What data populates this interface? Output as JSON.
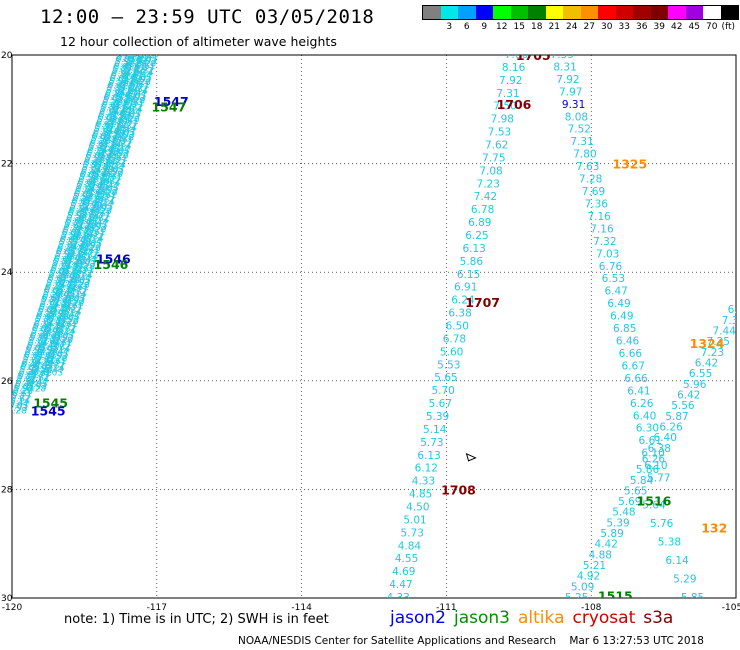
{
  "header": {
    "title": "12:00 – 23:59 UTC 03/05/2018",
    "subtitle": "12 hour collection of altimeter wave heights"
  },
  "legend": {
    "unit": "(ft)",
    "colors": [
      "#808080",
      "#00e8e8",
      "#00a0ff",
      "#0000ff",
      "#00ff00",
      "#00c000",
      "#008000",
      "#ffff00",
      "#f0c000",
      "#ff9000",
      "#ff0000",
      "#d00000",
      "#a00000",
      "#800000",
      "#ff00ff",
      "#a000e0",
      "#ffffff",
      "#000000"
    ],
    "labels": [
      "3",
      "6",
      "9",
      "12",
      "15",
      "18",
      "21",
      "24",
      "27",
      "30",
      "33",
      "36",
      "39",
      "42",
      "45",
      "70"
    ]
  },
  "chart_data": {
    "type": "map",
    "xlim": [
      -120,
      -105
    ],
    "ylim": [
      20,
      30
    ],
    "x_ticks": [
      "-120",
      "-117",
      "-114",
      "-111",
      "-108",
      "-105"
    ],
    "y_ticks": [
      "20",
      "22",
      "24",
      "26",
      "28",
      "30"
    ],
    "time_labels": [
      {
        "text": "1547",
        "lon": -116.7,
        "lat": 20.85,
        "color": "#0000cc"
      },
      {
        "text": "1547",
        "lon": -116.75,
        "lat": 20.95,
        "color": "#008000"
      },
      {
        "text": "1546",
        "lon": -117.9,
        "lat": 23.75,
        "color": "#0000cc"
      },
      {
        "text": "1546",
        "lon": -117.95,
        "lat": 23.85,
        "color": "#008000"
      },
      {
        "text": "1545",
        "lon": -119.2,
        "lat": 26.4,
        "color": "#008000"
      },
      {
        "text": "1545",
        "lon": -119.25,
        "lat": 26.55,
        "color": "#0000cc"
      },
      {
        "text": "1705",
        "lon": -109.2,
        "lat": 20.0,
        "color": "#800000"
      },
      {
        "text": "1706",
        "lon": -109.6,
        "lat": 20.9,
        "color": "#800000"
      },
      {
        "text": "1707",
        "lon": -110.25,
        "lat": 24.55,
        "color": "#800000"
      },
      {
        "text": "1708",
        "lon": -110.75,
        "lat": 28.0,
        "color": "#800000"
      },
      {
        "text": "1325",
        "lon": -107.2,
        "lat": 22.0,
        "color": "#ff8c00"
      },
      {
        "text": "1324",
        "lon": -105.6,
        "lat": 25.3,
        "color": "#ff8c00"
      },
      {
        "text": "132",
        "lon": -105.45,
        "lat": 28.7,
        "color": "#ff8c00"
      },
      {
        "text": "1516",
        "lon": -106.7,
        "lat": 28.2,
        "color": "#008000"
      },
      {
        "text": "1515",
        "lon": -107.5,
        "lat": 29.95,
        "color": "#008000"
      }
    ],
    "tracks": [
      {
        "satellite": "cryosat",
        "start": [
          -109.55,
          20.0
        ],
        "end": [
          -112.0,
          30.0
        ],
        "values": [
          "7.06",
          "8.16",
          "7.92",
          "7.31",
          "7.50",
          "7.98",
          "7.53",
          "7.62",
          "7.75",
          "7.08",
          "7.23",
          "7.42",
          "6.78",
          "6.89",
          "6.25",
          "6.13",
          "5.86",
          "6.15",
          "6.91",
          "6.24",
          "6.38",
          "6.50",
          "6.78",
          "5.60",
          "5.53",
          "5.65",
          "5.70",
          "5.67",
          "5.39",
          "5.14",
          "5.73",
          "6.13",
          "6.12",
          "4.33",
          "4.85",
          "4.50",
          "5.01",
          "5.73",
          "4.84",
          "4.55",
          "4.69",
          "4.47",
          "4.33"
        ]
      },
      {
        "satellite": "cryosat",
        "start": [
          -108.6,
          20.0
        ],
        "end": [
          -106.6,
          27.8
        ],
        "values": [
          "7.35",
          "8.31",
          "7.92",
          "7.97",
          "9.31",
          "8.08",
          "7.52",
          "7.31",
          "7.80",
          "7.63",
          "7.28",
          "7.69",
          "7.36",
          "7.16",
          "7.16",
          "7.32",
          "7.03",
          "6.76",
          "6.53",
          "6.47",
          "6.49",
          "6.49",
          "6.85",
          "6.46",
          "6.66",
          "6.67",
          "6.66",
          "6.41",
          "6.26",
          "6.40",
          "6.30",
          "6.61",
          "6.10",
          "6.10",
          "5.77"
        ]
      },
      {
        "satellite": "altika",
        "start": [
          -108.3,
          30.0
        ],
        "end": [
          -105.0,
          24.7
        ],
        "values": [
          "5.25",
          "5.09",
          "4.92",
          "5.21",
          "4.88",
          "4.42",
          "5.89",
          "5.39",
          "5.48",
          "5.69",
          "5.65",
          "5.84",
          "5.86",
          "6.26",
          "6.38",
          "6.40",
          "6.26",
          "5.87",
          "5.56",
          "6.42",
          "5.96",
          "6.55",
          "6.42",
          "7.23",
          "7.25",
          "7.44",
          "7.3",
          "6.3"
        ]
      },
      {
        "satellite": "altika",
        "start": [
          -106.7,
          28.3
        ],
        "end": [
          -105.9,
          30.0
        ],
        "values": [
          "5.64",
          "5.76",
          "5.38",
          "6.14",
          "5.29",
          "5.85"
        ]
      }
    ],
    "marker": {
      "lon": -110.5,
      "lat": 27.4
    }
  },
  "footer": {
    "note": "note: 1) Time is in UTC; 2) SWH is in feet",
    "satellites": [
      {
        "name": "jason2",
        "color": "#0000ee"
      },
      {
        "name": "jason3",
        "color": "#009000"
      },
      {
        "name": "altika",
        "color": "#ff8c00"
      },
      {
        "name": "cryosat",
        "color": "#d00000"
      },
      {
        "name": "s3a",
        "color": "#800000"
      }
    ],
    "credit": "NOAA/NESDIS Center for Satellite Applications and Research",
    "timestamp": "Mar  6 13:27:53 UTC 2018"
  }
}
